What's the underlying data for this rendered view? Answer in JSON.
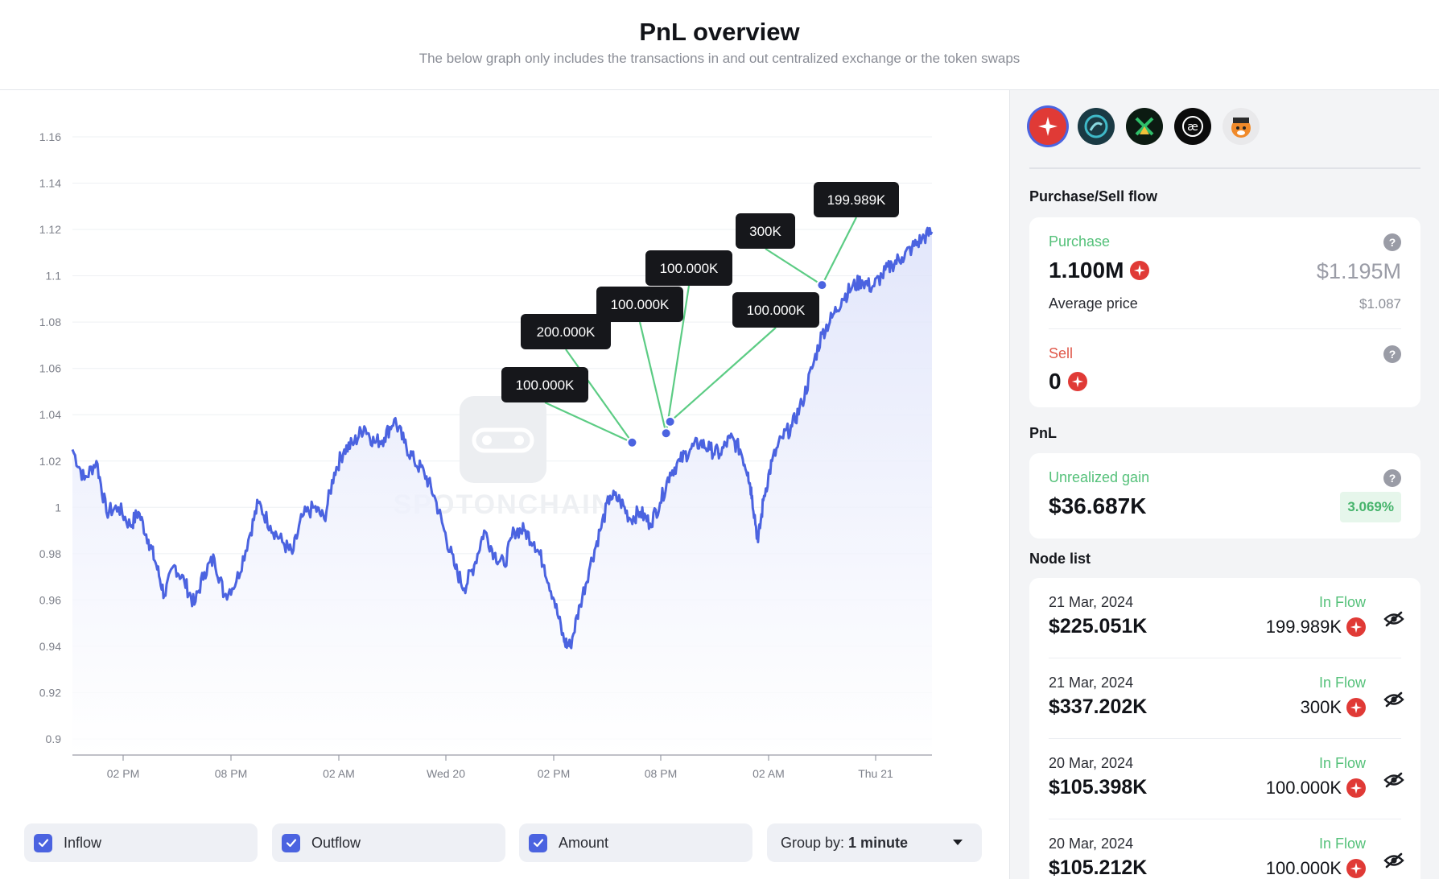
{
  "header": {
    "title": "PnL overview",
    "subtitle": "The below graph only includes the transactions in and out centralized exchange or the token swaps"
  },
  "chart_data": {
    "type": "area",
    "ylim": [
      0.9,
      1.16
    ],
    "yticks": [
      "1.16",
      "1.14",
      "1.12",
      "1.1",
      "1.08",
      "1.06",
      "1.04",
      "1.02",
      "1",
      "0.98",
      "0.96",
      "0.94",
      "0.92",
      "0.9"
    ],
    "xticks": [
      "02 PM",
      "08 PM",
      "02 AM",
      "Wed 20",
      "02 PM",
      "08 PM",
      "02 AM",
      "Thu 21"
    ],
    "series_color": "#4b63e0",
    "fill_color": "#e8ebfb",
    "price_path": [
      [
        0,
        1.025
      ],
      [
        0.6,
        1.012
      ],
      [
        1.2,
        1.02
      ],
      [
        1.7,
        0.998
      ],
      [
        2.3,
        1.0
      ],
      [
        2.9,
        0.992
      ],
      [
        3.3,
        0.998
      ],
      [
        3.8,
        0.986
      ],
      [
        4.2,
        0.975
      ],
      [
        4.6,
        0.962
      ],
      [
        5.1,
        0.975
      ],
      [
        5.6,
        0.968
      ],
      [
        6.1,
        0.958
      ],
      [
        6.6,
        0.972
      ],
      [
        7.1,
        0.978
      ],
      [
        7.6,
        0.962
      ],
      [
        8.2,
        0.968
      ],
      [
        8.8,
        0.986
      ],
      [
        9.3,
        1.002
      ],
      [
        9.9,
        0.992
      ],
      [
        10.5,
        0.985
      ],
      [
        11.0,
        0.98
      ],
      [
        11.5,
        0.996
      ],
      [
        12.1,
        1.0
      ],
      [
        12.6,
        0.995
      ],
      [
        13.1,
        1.015
      ],
      [
        13.6,
        1.025
      ],
      [
        14.1,
        1.028
      ],
      [
        14.6,
        1.035
      ],
      [
        15.1,
        1.028
      ],
      [
        15.6,
        1.03
      ],
      [
        16.1,
        1.038
      ],
      [
        16.6,
        1.028
      ],
      [
        17.1,
        1.02
      ],
      [
        17.6,
        1.015
      ],
      [
        18.1,
        1.005
      ],
      [
        18.6,
        0.99
      ],
      [
        19.1,
        0.975
      ],
      [
        19.6,
        0.965
      ],
      [
        20.1,
        0.975
      ],
      [
        20.6,
        0.99
      ],
      [
        21.1,
        0.98
      ],
      [
        21.6,
        0.975
      ],
      [
        22.1,
        0.99
      ],
      [
        22.6,
        0.99
      ],
      [
        23.1,
        0.985
      ],
      [
        23.6,
        0.975
      ],
      [
        24.1,
        0.96
      ],
      [
        24.6,
        0.942
      ],
      [
        24.9,
        0.94
      ],
      [
        25.4,
        0.958
      ],
      [
        25.9,
        0.975
      ],
      [
        26.4,
        0.99
      ],
      [
        26.9,
        1.005
      ],
      [
        27.4,
        1.003
      ],
      [
        27.9,
        0.995
      ],
      [
        28.4,
        0.998
      ],
      [
        28.9,
        0.993
      ],
      [
        29.4,
        1.002
      ],
      [
        29.9,
        1.015
      ],
      [
        30.4,
        1.02
      ],
      [
        30.9,
        1.025
      ],
      [
        31.4,
        1.028
      ],
      [
        31.9,
        1.025
      ],
      [
        32.4,
        1.023
      ],
      [
        32.9,
        1.03
      ],
      [
        33.4,
        1.025
      ],
      [
        33.8,
        1.015
      ],
      [
        34.0,
        1.005
      ],
      [
        34.3,
        0.985
      ],
      [
        34.6,
        1.005
      ],
      [
        35.0,
        1.02
      ],
      [
        35.5,
        1.03
      ],
      [
        36.0,
        1.035
      ],
      [
        36.5,
        1.045
      ],
      [
        37.0,
        1.06
      ],
      [
        37.5,
        1.075
      ],
      [
        38.0,
        1.082
      ],
      [
        38.5,
        1.09
      ],
      [
        39.0,
        1.095
      ],
      [
        39.5,
        1.098
      ],
      [
        40.0,
        1.095
      ],
      [
        40.5,
        1.1
      ],
      [
        41.0,
        1.105
      ],
      [
        41.5,
        1.108
      ],
      [
        42.0,
        1.112
      ],
      [
        42.5,
        1.116
      ],
      [
        43.0,
        1.119
      ]
    ],
    "markers": [
      {
        "label": "100.000K",
        "x": 28.0,
        "y": 1.028
      },
      {
        "label": "200.000K",
        "x": 28.0,
        "y": 1.028
      },
      {
        "label": "100.000K",
        "x": 29.7,
        "y": 1.032
      },
      {
        "label": "100.000K",
        "x": 29.7,
        "y": 1.032
      },
      {
        "label": "100.000K",
        "x": 29.9,
        "y": 1.037
      },
      {
        "label": "300K",
        "x": 37.5,
        "y": 1.096
      },
      {
        "label": "199.989K",
        "x": 37.5,
        "y": 1.096
      }
    ],
    "watermark": "SPOTONCHAIN"
  },
  "controls": {
    "inflow_label": "Inflow",
    "outflow_label": "Outflow",
    "amount_label": "Amount",
    "group_label": "Group by:",
    "group_value": "1 minute"
  },
  "sidebar": {
    "tokens": [
      {
        "icon": "spark-token-icon",
        "color": "#e03a36"
      },
      {
        "icon": "swirl-token-icon",
        "color": "#1a3a44"
      },
      {
        "icon": "x-token-icon",
        "color": "#0c1b12"
      },
      {
        "icon": "ae-token-icon",
        "color": "#0b0b0b"
      },
      {
        "icon": "dog-token-icon",
        "color": "#e9e9eb"
      }
    ],
    "flow_title": "Purchase/Sell flow",
    "purchase": {
      "label": "Purchase",
      "amount": "1.100M",
      "usd": "$1.195M",
      "avg_label": "Average price",
      "avg_value": "$1.087"
    },
    "sell": {
      "label": "Sell",
      "amount": "0"
    },
    "pnl_title": "PnL",
    "pnl": {
      "label": "Unrealized gain",
      "value": "$36.687K",
      "pct": "3.069%"
    },
    "node_title": "Node list",
    "nodes": [
      {
        "date": "21 Mar, 2024",
        "value": "$225.051K",
        "flow": "In Flow",
        "amount": "199.989K"
      },
      {
        "date": "21 Mar, 2024",
        "value": "$337.202K",
        "flow": "In Flow",
        "amount": "300K"
      },
      {
        "date": "20 Mar, 2024",
        "value": "$105.398K",
        "flow": "In Flow",
        "amount": "100.000K"
      },
      {
        "date": "20 Mar, 2024",
        "value": "$105.212K",
        "flow": "In Flow",
        "amount": "100.000K"
      }
    ]
  }
}
